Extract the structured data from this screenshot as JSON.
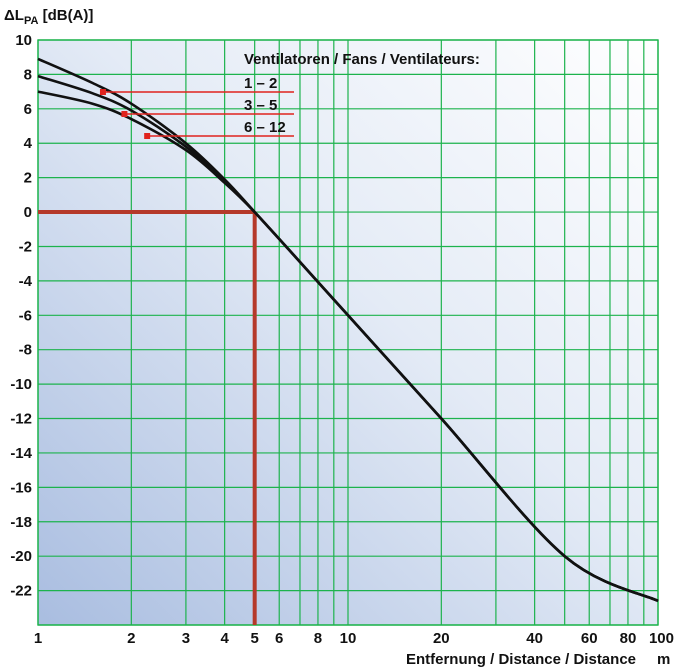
{
  "chart_data": {
    "type": "line",
    "ylabel": "ΔL",
    "ylabel_sub": "PA",
    "ylabel_unit": " [dB(A)]",
    "xlabel": "Entfernung / Distance / Distance",
    "xunit": "m",
    "xscale": "log",
    "xlim": [
      1,
      100
    ],
    "ylim": [
      -24,
      10
    ],
    "grid": true,
    "xticks": [
      1,
      2,
      3,
      4,
      5,
      6,
      8,
      10,
      20,
      40,
      60,
      80,
      100
    ],
    "xtick_labels": [
      "1",
      "2",
      "3",
      "4",
      "5",
      "6",
      "8",
      "10",
      "20",
      "40",
      "60",
      "80",
      "100"
    ],
    "x_minor_grid": [
      7,
      9,
      30,
      50,
      70,
      90
    ],
    "yticks": [
      10,
      8,
      6,
      4,
      2,
      0,
      -2,
      -4,
      -6,
      -8,
      -10,
      -12,
      -14,
      -16,
      -18,
      -20,
      -22
    ],
    "ytick_labels": [
      "10",
      "8",
      "6",
      "4",
      "2",
      "0",
      "-2",
      "-4",
      "-6",
      "-8",
      "-10",
      "-12",
      "-14",
      "-16",
      "-18",
      "-20",
      "-22"
    ],
    "legend": {
      "title": "Ventilatoren / Fans / Ventilateurs:",
      "placement": "top-right",
      "entries": [
        "1 – 2",
        "3 – 5",
        "6 – 12"
      ]
    },
    "series": [
      {
        "name": "1 – 2",
        "x": [
          1,
          1.5,
          2,
          3,
          4,
          5,
          7,
          10,
          20,
          50,
          100
        ],
        "y": [
          8.9,
          7.5,
          6.3,
          4.0,
          1.9,
          0,
          -2.9,
          -6.0,
          -12.0,
          -20.0,
          -22.6
        ]
      },
      {
        "name": "3 – 5",
        "x": [
          1,
          1.5,
          2,
          3,
          4,
          5,
          7,
          10,
          20,
          50,
          100
        ],
        "y": [
          7.9,
          6.9,
          5.9,
          3.8,
          1.8,
          0,
          -2.9,
          -6.0,
          -12.0,
          -20.0,
          -22.6
        ]
      },
      {
        "name": "6 – 12",
        "x": [
          1,
          1.5,
          2,
          3,
          4,
          5,
          7,
          10,
          20,
          50,
          100
        ],
        "y": [
          7.0,
          6.3,
          5.4,
          3.6,
          1.7,
          0,
          -2.9,
          -6.0,
          -12.0,
          -20.0,
          -22.6
        ]
      }
    ],
    "reference_marker": {
      "x": 5,
      "y": 0
    },
    "colors": {
      "grid": "#1db34d",
      "curve": "#111111",
      "reference": "#b5392a",
      "legend_line": "#e0231e",
      "background_light": "#ffffff",
      "background_dark": "#a9bde0"
    }
  }
}
